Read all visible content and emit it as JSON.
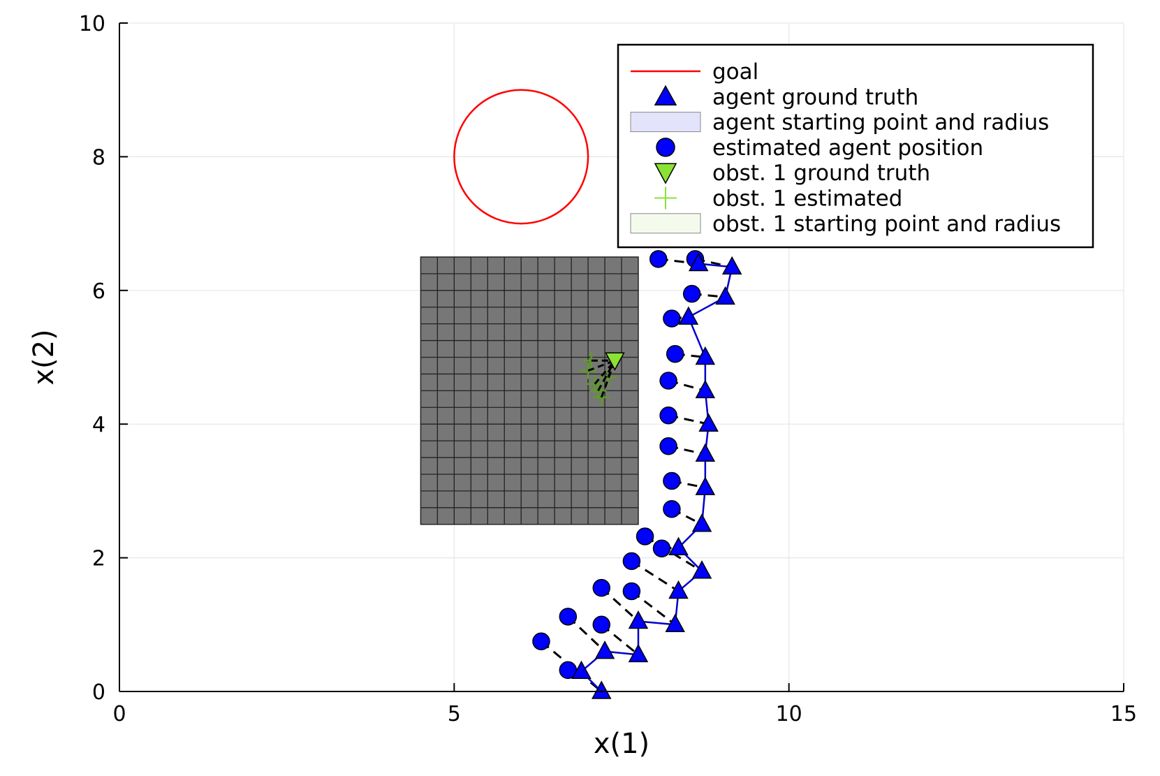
{
  "chart_data": {
    "type": "scatter",
    "xlabel": "x(1)",
    "ylabel": "x(2)",
    "xlim": [
      0,
      15
    ],
    "ylim": [
      0,
      10
    ],
    "xticks": [
      0,
      5,
      10,
      15
    ],
    "yticks": [
      0,
      2,
      4,
      6,
      8,
      10
    ],
    "grid": true,
    "legend_position": "top-right",
    "legend": [
      {
        "label": "goal",
        "marker": "line",
        "color": "#ff0000"
      },
      {
        "label": "agent ground truth",
        "marker": "triangle-up",
        "color": "#0000ff"
      },
      {
        "label": "agent starting point and radius",
        "marker": "rect",
        "color": "#e3e4fb"
      },
      {
        "label": "estimated agent position",
        "marker": "circle",
        "color": "#0000ff"
      },
      {
        "label": "obst. 1 ground truth",
        "marker": "triangle-down",
        "color": "#8ae234"
      },
      {
        "label": "obst. 1 estimated",
        "marker": "cross",
        "color": "#8ae234"
      },
      {
        "label": "obst. 1 starting point and radius",
        "marker": "rect",
        "color": "#f4fbec"
      }
    ],
    "goal": {
      "center": [
        6.0,
        8.0
      ],
      "radius": 1.0
    },
    "obstacle_region": {
      "x": [
        4.5,
        7.75
      ],
      "y": [
        2.5,
        6.5
      ],
      "color": "#777777"
    },
    "agent_ground_truth": [
      [
        7.2,
        0.0
      ],
      [
        6.9,
        0.3
      ],
      [
        7.25,
        0.6
      ],
      [
        7.75,
        0.55
      ],
      [
        7.75,
        1.05
      ],
      [
        8.3,
        1.0
      ],
      [
        8.35,
        1.5
      ],
      [
        8.7,
        1.8
      ],
      [
        8.35,
        2.15
      ],
      [
        8.7,
        2.5
      ],
      [
        8.75,
        3.05
      ],
      [
        8.75,
        3.55
      ],
      [
        8.8,
        4.0
      ],
      [
        8.75,
        4.5
      ],
      [
        8.75,
        5.0
      ],
      [
        8.5,
        5.6
      ],
      [
        9.05,
        5.9
      ],
      [
        9.15,
        6.35
      ],
      [
        8.65,
        6.4
      ]
    ],
    "estimated_agent_position": [
      [
        6.3,
        0.75
      ],
      [
        6.7,
        0.32
      ],
      [
        6.7,
        1.12
      ],
      [
        7.2,
        1.0
      ],
      [
        7.2,
        1.55
      ],
      [
        7.65,
        1.5
      ],
      [
        7.65,
        1.95
      ],
      [
        7.85,
        2.32
      ],
      [
        8.1,
        2.14
      ],
      [
        8.25,
        2.73
      ],
      [
        8.25,
        3.15
      ],
      [
        8.2,
        3.67
      ],
      [
        8.2,
        4.13
      ],
      [
        8.2,
        4.65
      ],
      [
        8.3,
        5.05
      ],
      [
        8.25,
        5.58
      ],
      [
        8.55,
        5.95
      ],
      [
        8.6,
        6.47
      ],
      [
        8.05,
        6.47
      ]
    ],
    "obstacle_ground_truth": [
      [
        7.4,
        4.95
      ]
    ],
    "obstacle_estimated": [
      [
        7.0,
        4.8
      ],
      [
        7.1,
        4.6
      ],
      [
        7.2,
        4.4
      ],
      [
        7.05,
        4.95
      ],
      [
        7.3,
        4.7
      ],
      [
        7.15,
        4.5
      ]
    ]
  }
}
